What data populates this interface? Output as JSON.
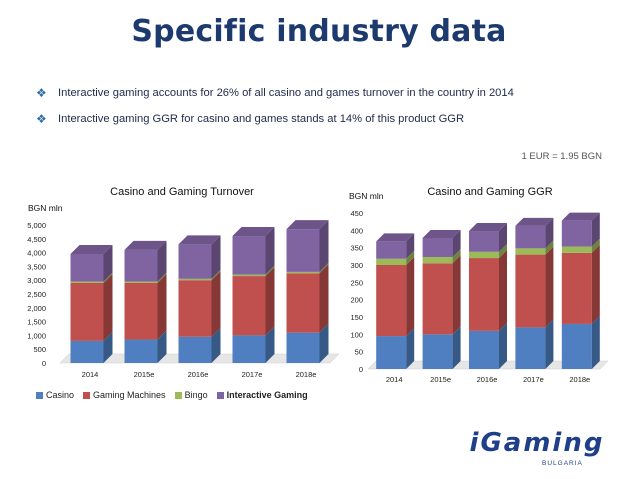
{
  "slide": {
    "title": "Specific industry data",
    "bullets": [
      "Interactive gaming accounts for 26% of all casino and games turnover in the country in 2014",
      "Interactive gaming GGR for casino and games stands at 14% of this product GGR"
    ],
    "fx_note": "1 EUR = 1.95 BGN",
    "logo_text": "iGaming",
    "logo_sub": "BULGARIA"
  },
  "colors": {
    "casino": "#4f7fc0",
    "gaming_machines": "#c0504d",
    "bingo": "#9bbb59",
    "interactive_gaming": "#8064a2"
  },
  "legend": [
    "Casino",
    "Gaming Machines",
    "Bingo",
    "Interactive Gaming"
  ],
  "chart_data": [
    {
      "type": "bar",
      "stacked": true,
      "title": "Casino and Gaming Turnover",
      "ylabel": "BGN mln",
      "xlabel": "",
      "ylim": [
        0,
        5000
      ],
      "yticks": [
        "0",
        "500",
        "1,000",
        "1,500",
        "2,000",
        "2,500",
        "3,000",
        "3,500",
        "4,000",
        "4,500",
        "5,000"
      ],
      "categories": [
        "2014",
        "2015e",
        "2016e",
        "2017e",
        "2018e"
      ],
      "series": [
        {
          "name": "Casino",
          "values": [
            800,
            850,
            950,
            1000,
            1100
          ]
        },
        {
          "name": "Gaming Machines",
          "values": [
            2100,
            2050,
            2050,
            2150,
            2150
          ]
        },
        {
          "name": "Bingo",
          "values": [
            50,
            50,
            50,
            50,
            50
          ]
        },
        {
          "name": "Interactive Gaming",
          "values": [
            1000,
            1150,
            1250,
            1400,
            1550
          ]
        }
      ]
    },
    {
      "type": "bar",
      "stacked": true,
      "title": "Casino and Gaming GGR",
      "ylabel": "BGN mln",
      "xlabel": "",
      "ylim": [
        0,
        450
      ],
      "yticks": [
        "0",
        "50",
        "100",
        "150",
        "200",
        "250",
        "300",
        "350",
        "400",
        "450"
      ],
      "categories": [
        "2014",
        "2015e",
        "2016e",
        "2017e",
        "2018e"
      ],
      "series": [
        {
          "name": "Casino",
          "values": [
            95,
            100,
            110,
            120,
            130
          ]
        },
        {
          "name": "Gaming Machines",
          "values": [
            205,
            205,
            210,
            210,
            205
          ]
        },
        {
          "name": "Bingo",
          "values": [
            18,
            18,
            18,
            18,
            18
          ]
        },
        {
          "name": "Interactive Gaming",
          "values": [
            50,
            55,
            60,
            65,
            75
          ]
        }
      ]
    }
  ]
}
